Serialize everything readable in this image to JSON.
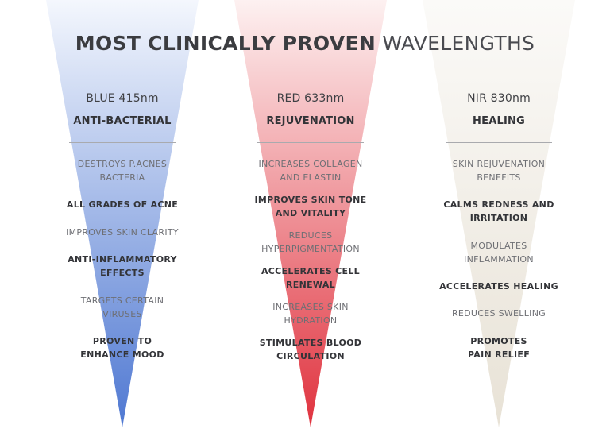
{
  "title": {
    "bold_part": "MOST CLINICALLY PROVEN",
    "light_part": "WAVELENGTHS"
  },
  "columns": [
    {
      "wavelength": "BLUE 415nm",
      "effect": "ANTI-BACTERIAL",
      "beam_color_top": "#f4f7fd",
      "beam_color_bottom": "#4f78d2",
      "benefits": [
        {
          "text": "DESTROYS P.ACNES\nBACTERIA",
          "emphasis": false
        },
        {
          "text": "ALL GRADES OF ACNE",
          "emphasis": true
        },
        {
          "text": "IMPROVES SKIN CLARITY",
          "emphasis": false
        },
        {
          "text": "ANTI-INFLAMMATORY\nEFFECTS",
          "emphasis": true
        },
        {
          "text": "TARGETS CERTAIN\nVIRUSES",
          "emphasis": false
        },
        {
          "text": "PROVEN TO\nENHANCE MOOD",
          "emphasis": true
        }
      ]
    },
    {
      "wavelength": "RED 633nm",
      "effect": "REJUVENATION",
      "beam_color_top": "#fdf1f1",
      "beam_color_bottom": "#e0323e",
      "benefits": [
        {
          "text": "INCREASES COLLAGEN\nAND ELASTIN",
          "emphasis": false
        },
        {
          "text": "IMPROVES SKIN TONE\nAND VITALITY",
          "emphasis": true
        },
        {
          "text": "REDUCES\nHYPERPIGMENTATION",
          "emphasis": false
        },
        {
          "text": "ACCELERATES CELL\nRENEWAL",
          "emphasis": true
        },
        {
          "text": "INCREASES SKIN\nHYDRATION",
          "emphasis": false
        },
        {
          "text": "STIMULATES BLOOD\nCIRCULATION",
          "emphasis": true
        }
      ]
    },
    {
      "wavelength": "NIR 830nm",
      "effect": "HEALING",
      "beam_color_top": "#fbfaf8",
      "beam_color_bottom": "#e8e2d6",
      "benefits": [
        {
          "text": "SKIN REJUVENATION\nBENEFITS",
          "emphasis": false
        },
        {
          "text": "CALMS REDNESS AND\nIRRITATION",
          "emphasis": true
        },
        {
          "text": "MODULATES\nINFLAMMATION",
          "emphasis": false
        },
        {
          "text": "ACCELERATES HEALING",
          "emphasis": true
        },
        {
          "text": "REDUCES SWELLING",
          "emphasis": false
        },
        {
          "text": "PROMOTES\nPAIN RELIEF",
          "emphasis": true
        }
      ]
    }
  ]
}
